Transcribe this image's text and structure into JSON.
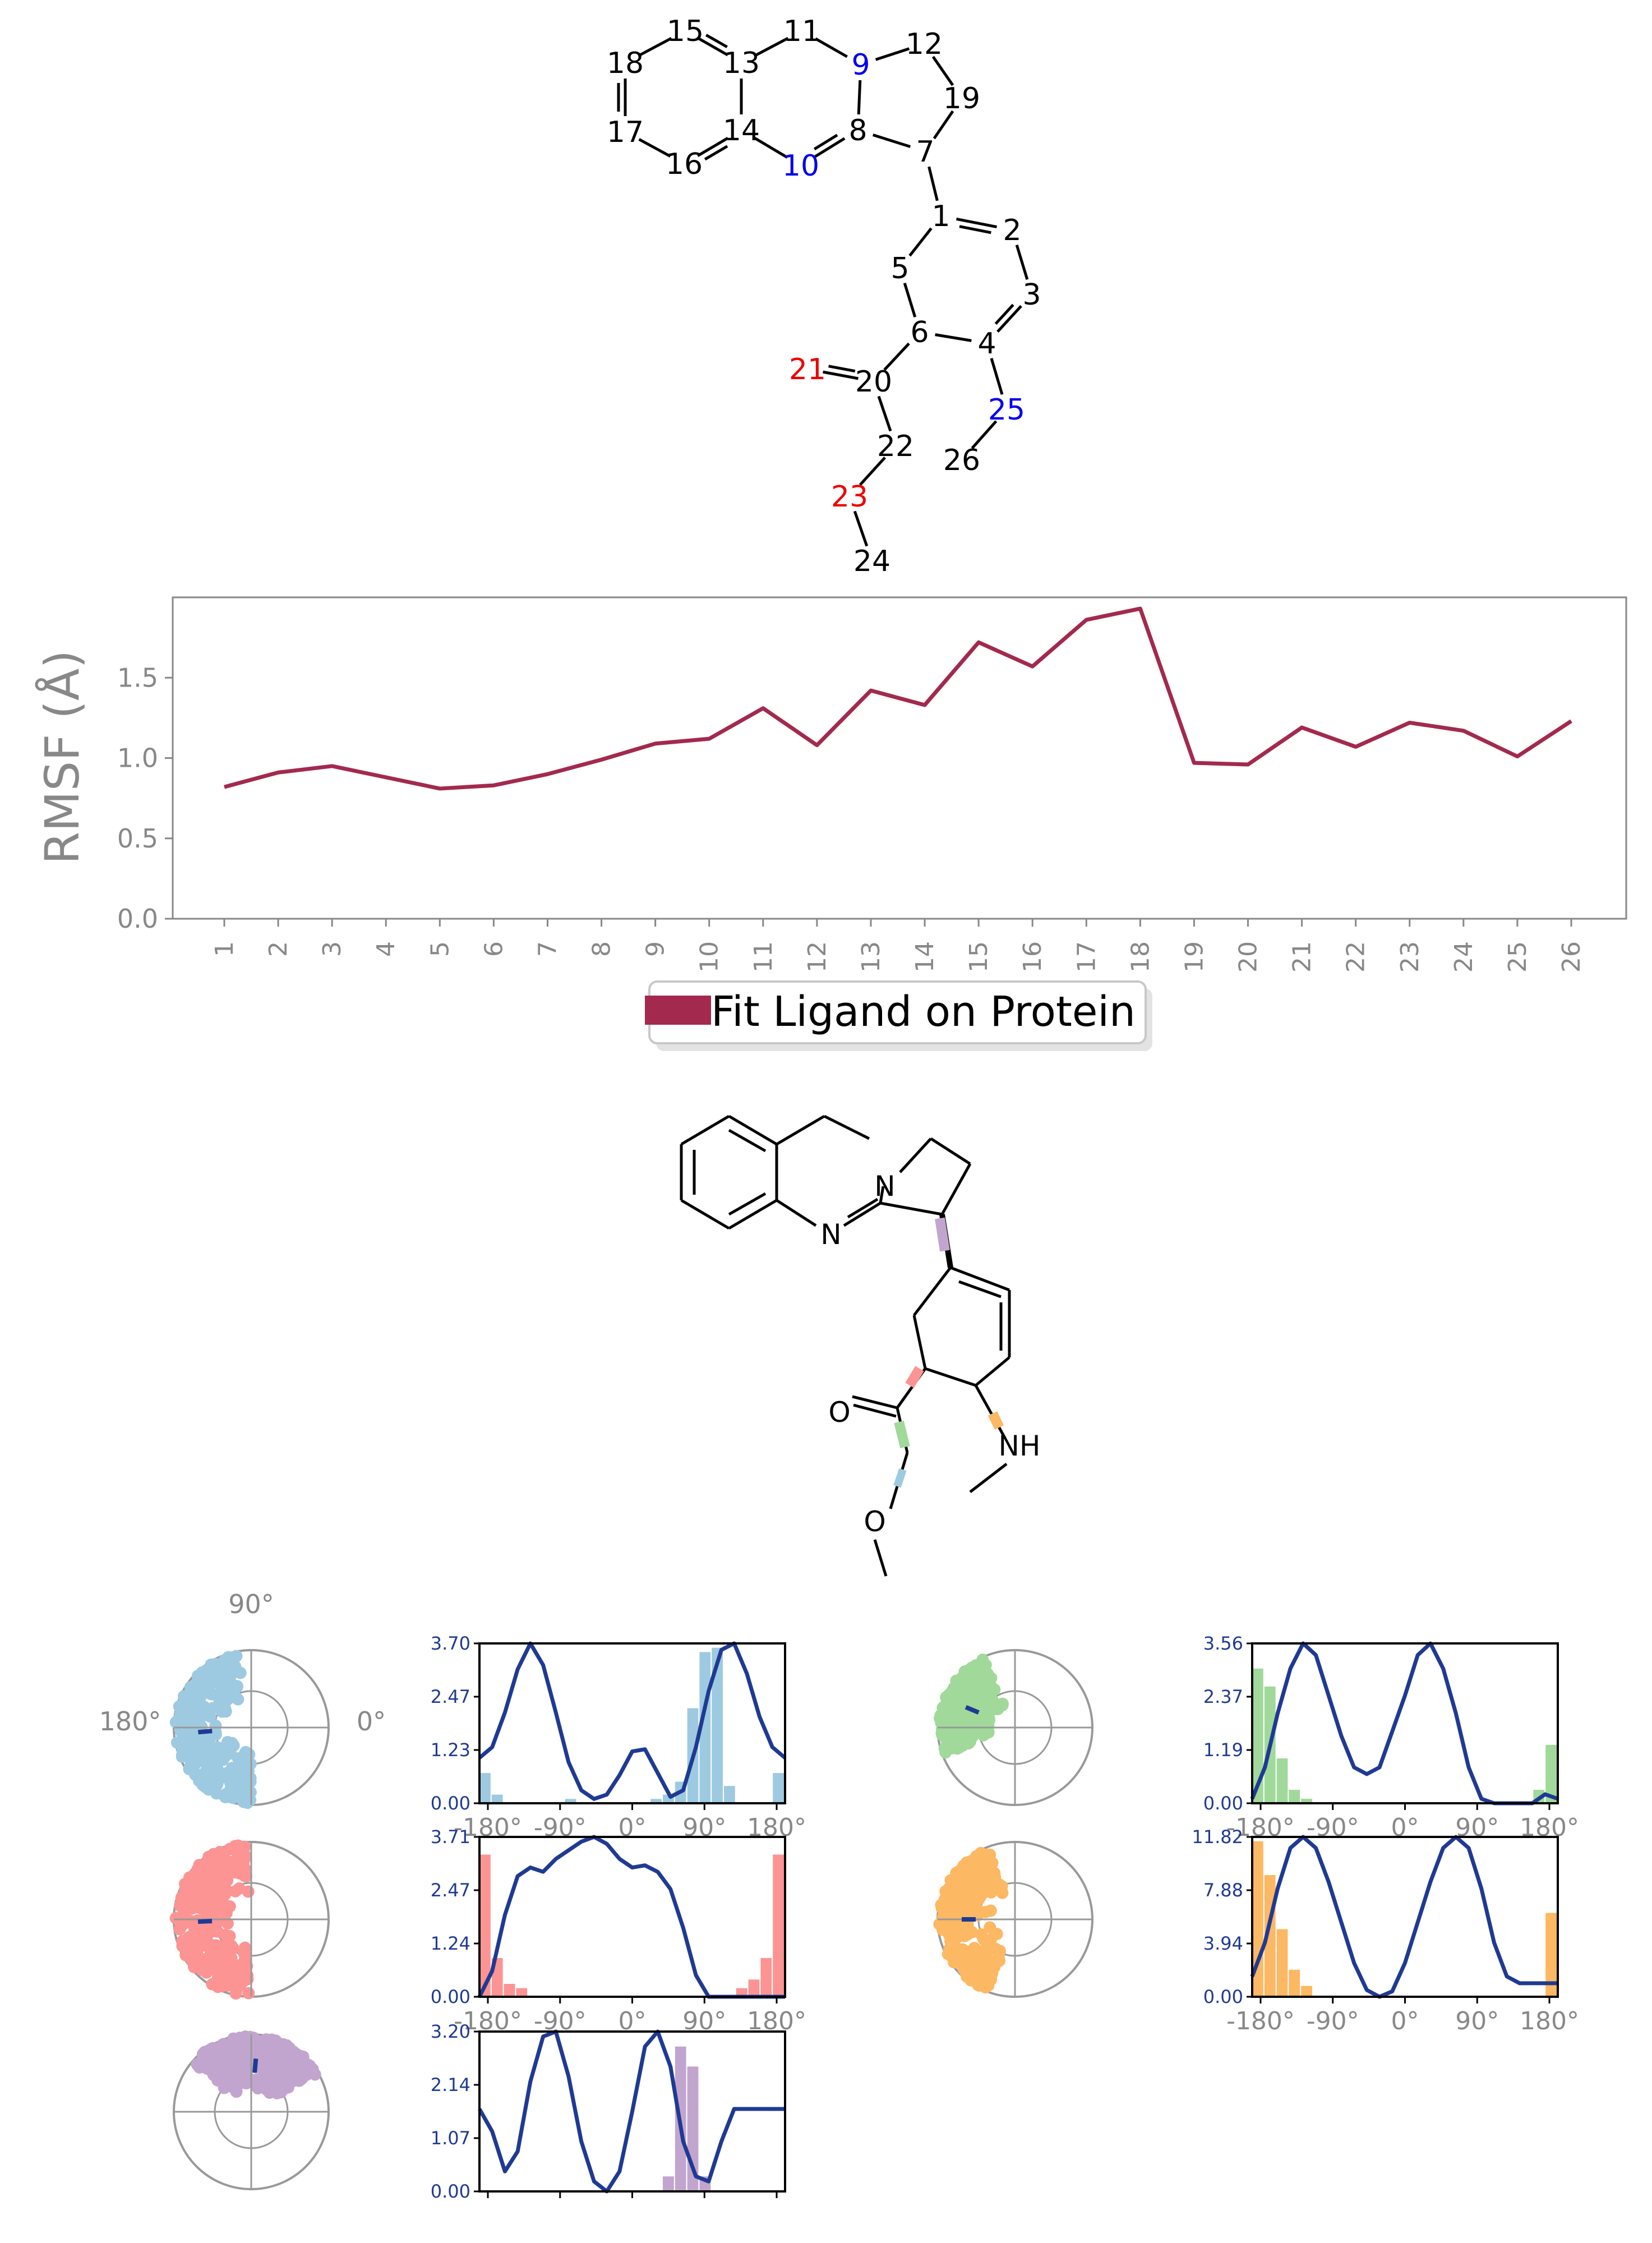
{
  "molecule_numbered": {
    "atoms": [
      {
        "id": "1",
        "color": "#000000"
      },
      {
        "id": "2",
        "color": "#000000"
      },
      {
        "id": "3",
        "color": "#000000"
      },
      {
        "id": "4",
        "color": "#000000"
      },
      {
        "id": "5",
        "color": "#000000"
      },
      {
        "id": "6",
        "color": "#000000"
      },
      {
        "id": "7",
        "color": "#000000"
      },
      {
        "id": "8",
        "color": "#000000"
      },
      {
        "id": "9",
        "color": "#0000ee"
      },
      {
        "id": "10",
        "color": "#0000ee"
      },
      {
        "id": "11",
        "color": "#000000"
      },
      {
        "id": "12",
        "color": "#000000"
      },
      {
        "id": "13",
        "color": "#000000"
      },
      {
        "id": "14",
        "color": "#000000"
      },
      {
        "id": "15",
        "color": "#000000"
      },
      {
        "id": "16",
        "color": "#000000"
      },
      {
        "id": "17",
        "color": "#000000"
      },
      {
        "id": "18",
        "color": "#000000"
      },
      {
        "id": "19",
        "color": "#000000"
      },
      {
        "id": "20",
        "color": "#000000"
      },
      {
        "id": "21",
        "color": "#ee0000"
      },
      {
        "id": "22",
        "color": "#000000"
      },
      {
        "id": "23",
        "color": "#ee0000"
      },
      {
        "id": "24",
        "color": "#000000"
      },
      {
        "id": "25",
        "color": "#0000ee"
      },
      {
        "id": "26",
        "color": "#000000"
      }
    ]
  },
  "molecule_skeletal": {
    "labels": {
      "n_ring": "N",
      "n_imine": "N",
      "oxygen_carbonyl": "O",
      "amine": "NH",
      "oxygen_ether": "O"
    }
  },
  "chart_data": [
    {
      "type": "line",
      "title": "",
      "ylabel": "RMSF (Å)",
      "xlabel": "",
      "ylim": [
        0,
        2.0
      ],
      "yticks": [
        0.0,
        0.5,
        1.0,
        1.5
      ],
      "ytick_labels": [
        "0.0",
        "0.5",
        "1.0",
        "1.5"
      ],
      "categories": [
        "1",
        "2",
        "3",
        "4",
        "5",
        "6",
        "7",
        "8",
        "9",
        "10",
        "11",
        "12",
        "13",
        "14",
        "15",
        "16",
        "17",
        "18",
        "19",
        "20",
        "21",
        "22",
        "23",
        "24",
        "25",
        "26"
      ],
      "series": [
        {
          "name": "Fit Ligand on Protein",
          "color": "#a3294f",
          "values": [
            0.82,
            0.91,
            0.95,
            0.88,
            0.81,
            0.83,
            0.9,
            0.99,
            1.09,
            1.12,
            1.31,
            1.08,
            1.42,
            1.33,
            1.72,
            1.57,
            1.86,
            1.93,
            0.97,
            0.96,
            1.19,
            1.07,
            1.22,
            1.17,
            1.01,
            1.23
          ]
        }
      ],
      "legend": "below"
    },
    {
      "type": "torsion_profiles",
      "angle_labels": {
        "top": "90°",
        "left": "180°",
        "right": "0°"
      },
      "x_ticks": [
        "-180°",
        "-90°",
        "0°",
        "90°",
        "180°"
      ],
      "panels": [
        {
          "color": "#9ecae1",
          "yticks": [
            "0.00",
            "1.23",
            "2.47",
            "3.70"
          ],
          "ymax": 3.7,
          "curve": [
            1.05,
            1.3,
            2.1,
            3.1,
            3.7,
            3.2,
            2.1,
            0.95,
            0.3,
            0.1,
            0.2,
            0.65,
            1.2,
            1.25,
            0.7,
            0.15,
            0.3,
            1.3,
            2.6,
            3.55,
            3.7,
            3.0,
            2.0,
            1.3,
            1.05
          ],
          "hist": [
            0.7,
            0.2,
            0,
            0,
            0,
            0,
            0,
            0.1,
            0,
            0,
            0,
            0,
            0,
            0,
            0.1,
            0.2,
            0.5,
            2.2,
            3.5,
            3.6,
            0.4,
            0,
            0,
            0,
            0.7
          ],
          "polar_arc": [
            100,
            270
          ]
        },
        {
          "color": "#a1d99b",
          "yticks": [
            "0.00",
            "1.19",
            "2.37",
            "3.56"
          ],
          "ymax": 3.56,
          "curve": [
            0.1,
            0.8,
            2.0,
            3.0,
            3.56,
            3.3,
            2.4,
            1.5,
            0.8,
            0.65,
            0.8,
            1.6,
            2.4,
            3.3,
            3.56,
            3.0,
            2.0,
            0.8,
            0.1,
            0,
            0,
            0,
            0,
            0.2,
            0.1
          ],
          "hist": [
            3.0,
            2.6,
            1.0,
            0.3,
            0.1,
            0,
            0,
            0,
            0,
            0,
            0,
            0,
            0,
            0,
            0,
            0,
            0,
            0,
            0,
            0,
            0,
            0,
            0,
            0.3,
            1.3
          ],
          "polar_arc": [
            115,
            200
          ]
        },
        {
          "color": "#fc9494",
          "yticks": [
            "0.00",
            "1.24",
            "2.47",
            "3.71"
          ],
          "ymax": 3.71,
          "curve": [
            0,
            0.6,
            1.9,
            2.8,
            3.0,
            2.9,
            3.2,
            3.4,
            3.6,
            3.71,
            3.55,
            3.2,
            3.0,
            3.05,
            2.9,
            2.5,
            1.6,
            0.5,
            0,
            0,
            0,
            0,
            0,
            0,
            0
          ],
          "hist": [
            3.3,
            0.9,
            0.3,
            0.2,
            0,
            0,
            0,
            0,
            0,
            0,
            0,
            0,
            0,
            0,
            0,
            0,
            0,
            0,
            0,
            0,
            0,
            0.2,
            0.4,
            0.9,
            3.3
          ],
          "polar_arc": [
            95,
            270
          ]
        },
        {
          "color": "#fdb863",
          "yticks": [
            "0.00",
            "3.94",
            "7.88",
            "11.82"
          ],
          "ymax": 11.82,
          "curve": [
            1.5,
            4.0,
            8.0,
            11.0,
            11.82,
            11.0,
            8.5,
            5.5,
            2.5,
            0.5,
            0,
            0.4,
            2.5,
            5.5,
            8.5,
            11.0,
            11.82,
            11.0,
            8.0,
            4.0,
            1.5,
            1.0,
            1.0,
            1.0,
            1.0
          ],
          "hist": [
            11.5,
            9.0,
            5.0,
            2.0,
            0.8,
            0,
            0,
            0,
            0,
            0,
            0,
            0,
            0,
            0,
            0,
            0,
            0,
            0,
            0,
            0,
            0,
            0,
            0,
            0,
            6.2
          ],
          "polar_arc": [
            110,
            250
          ]
        },
        {
          "color": "#c2a5cf",
          "yticks": [
            "0.00",
            "1.07",
            "2.14",
            "3.20"
          ],
          "ymax": 3.2,
          "curve": [
            1.65,
            1.2,
            0.4,
            0.8,
            2.2,
            3.1,
            3.2,
            2.3,
            1.0,
            0.2,
            0.0,
            0.4,
            1.6,
            2.9,
            3.2,
            2.5,
            1.0,
            0.3,
            0.2,
            1.0,
            1.65,
            1.65,
            1.65,
            1.65,
            1.65
          ],
          "hist": [
            0,
            0,
            0,
            0,
            0,
            0,
            0,
            0,
            0,
            0,
            0,
            0,
            0,
            0,
            0,
            0.3,
            2.9,
            2.5,
            0.3,
            0,
            0,
            0,
            0,
            0,
            0
          ],
          "polar_arc": [
            30,
            140
          ]
        }
      ]
    }
  ]
}
